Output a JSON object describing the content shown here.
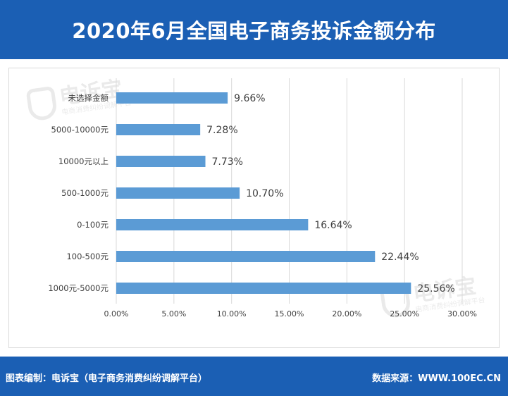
{
  "header": {
    "title": "2020年6月全国电子商务投诉金额分布"
  },
  "watermark": {
    "brand": "电诉宝",
    "sub": "电商消费纠纷调解平台"
  },
  "footer": {
    "left": "图表编制：电诉宝（电子商务消费纠纷调解平台）",
    "right": "数据来源：WWW.100EC.CN"
  },
  "colors": {
    "header_bg": "#1b5fb4",
    "bar": "#5b9bd5",
    "gridline": "#d9d9d9"
  },
  "chart_data": {
    "type": "bar",
    "orientation": "horizontal",
    "title": "2020年6月全国电子商务投诉金额分布",
    "categories": [
      "未选择金额",
      "5000-10000元",
      "10000元以上",
      "500-1000元",
      "0-100元",
      "100-500元",
      "1000元-5000元"
    ],
    "values": [
      9.66,
      7.28,
      7.73,
      10.7,
      16.64,
      22.44,
      25.56
    ],
    "value_labels": [
      "9.66%",
      "7.28%",
      "7.73%",
      "10.70%",
      "16.64%",
      "22.44%",
      "25.56%"
    ],
    "xlim": [
      0,
      30
    ],
    "xticks": [
      0,
      5,
      10,
      15,
      20,
      25,
      30
    ],
    "xtick_labels": [
      "0.00%",
      "5.00%",
      "10.00%",
      "15.00%",
      "20.00%",
      "25.00%",
      "30.00%"
    ],
    "grid": true,
    "legend": "none"
  }
}
